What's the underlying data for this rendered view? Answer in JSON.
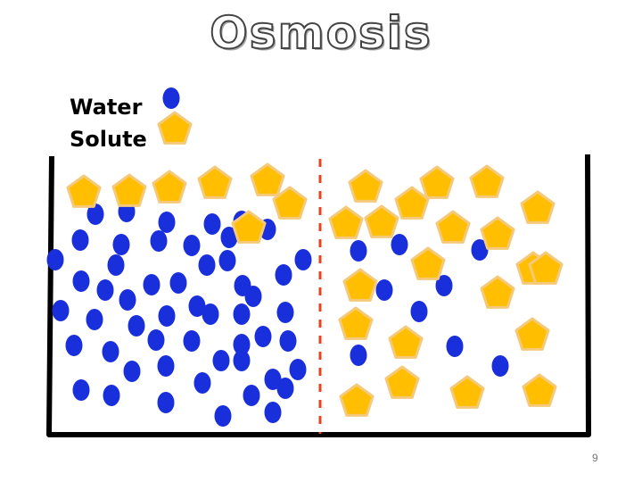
{
  "title": "Osmosis",
  "legend": {
    "water_label": "Water",
    "solute_label": "Solute"
  },
  "page_number": "9",
  "colors": {
    "water": "#1a2fdc",
    "solute_fill": "#ffbf00",
    "solute_stroke": "#f5c97a",
    "membrane": "#e8431e",
    "container": "#000000"
  },
  "icons": {
    "water": "water-molecule-icon",
    "solute": "solute-particle-icon"
  }
}
